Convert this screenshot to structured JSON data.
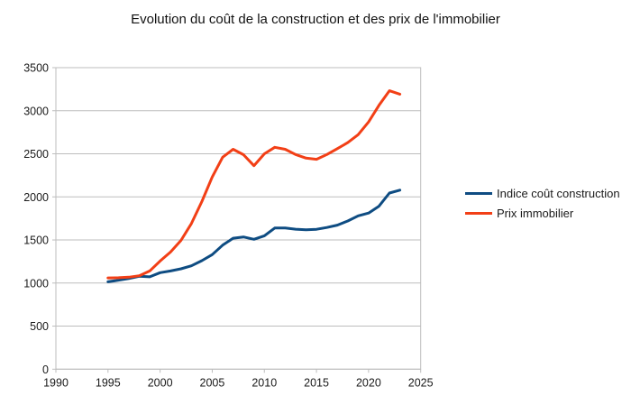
{
  "chart": {
    "colors": {
      "grid": "#bdbdbd",
      "axis_text": "#1a1a1a",
      "series_construction": "#0e4c82",
      "series_immobilier": "#f23f16"
    }
  },
  "chart_data": {
    "type": "line",
    "title": "Evolution du coût de la construction et des prix de l'immobilier",
    "xlabel": "",
    "ylabel": "",
    "xlim": [
      1990,
      2025
    ],
    "ylim": [
      0,
      3500
    ],
    "x_ticks": [
      1990,
      1995,
      2000,
      2005,
      2010,
      2015,
      2020,
      2025
    ],
    "y_ticks": [
      0,
      500,
      1000,
      1500,
      2000,
      2500,
      3000,
      3500
    ],
    "grid": true,
    "legend_position": "right",
    "x": [
      1995,
      1996,
      1997,
      1998,
      1999,
      2000,
      2001,
      2002,
      2003,
      2004,
      2005,
      2006,
      2007,
      2008,
      2009,
      2010,
      2011,
      2012,
      2013,
      2014,
      2015,
      2016,
      2017,
      2018,
      2019,
      2020,
      2021,
      2022,
      2023
    ],
    "series": [
      {
        "name": "Indice coût construction",
        "color": "#0e4c82",
        "values": [
          1015,
          1032,
          1052,
          1078,
          1072,
          1120,
          1140,
          1165,
          1200,
          1260,
          1330,
          1440,
          1520,
          1535,
          1508,
          1548,
          1638,
          1640,
          1625,
          1618,
          1624,
          1645,
          1672,
          1720,
          1780,
          1812,
          1892,
          2045,
          2078
        ]
      },
      {
        "name": "Prix immobilier",
        "color": "#f23f16",
        "values": [
          1060,
          1062,
          1068,
          1085,
          1140,
          1255,
          1360,
          1495,
          1690,
          1945,
          2230,
          2460,
          2552,
          2490,
          2362,
          2500,
          2576,
          2552,
          2492,
          2450,
          2436,
          2492,
          2560,
          2630,
          2722,
          2870,
          3062,
          3232,
          3192
        ]
      }
    ]
  }
}
